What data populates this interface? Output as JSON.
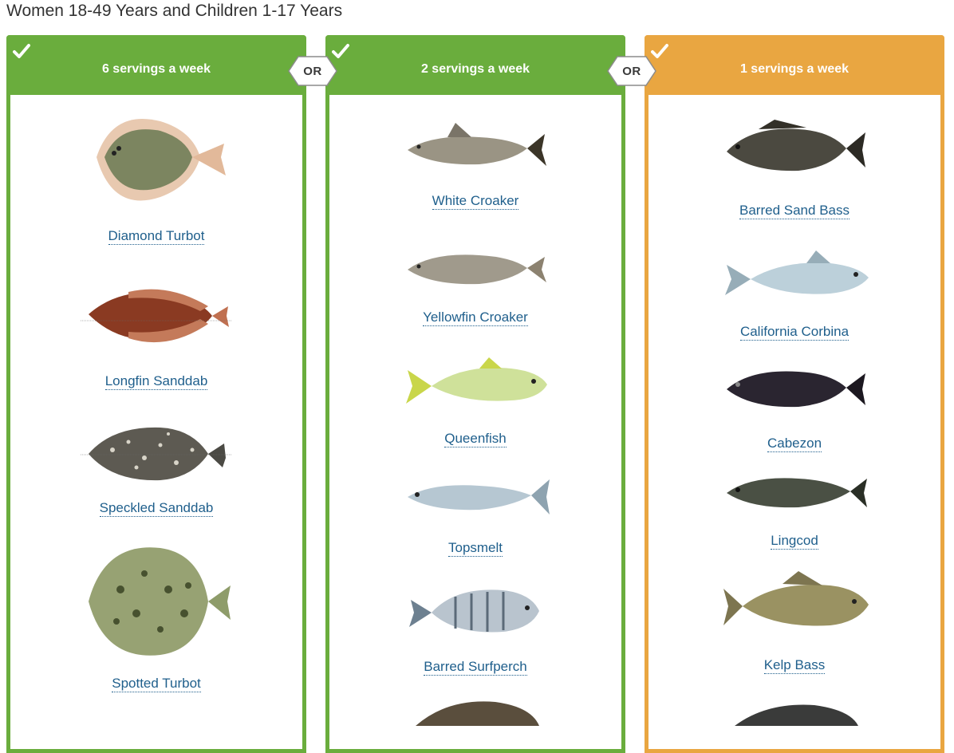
{
  "page": {
    "title": "Women 18-49 Years and Children 1-17 Years"
  },
  "colors": {
    "green": "#6aad3d",
    "orange": "#e9a641",
    "link": "#1f5f8c"
  },
  "separator_label": "OR",
  "columns": [
    {
      "header": "6 servings a week",
      "fish": [
        {
          "name": "Diamond Turbot"
        },
        {
          "name": "Longfin Sanddab"
        },
        {
          "name": "Speckled Sanddab"
        },
        {
          "name": "Spotted Turbot"
        }
      ]
    },
    {
      "header": "2 servings a week",
      "fish": [
        {
          "name": "White Croaker"
        },
        {
          "name": "Yellowfin Croaker"
        },
        {
          "name": "Queenfish"
        },
        {
          "name": "Topsmelt"
        },
        {
          "name": "Barred Surfperch"
        }
      ]
    },
    {
      "header": "1 servings a week",
      "fish": [
        {
          "name": "Barred Sand Bass"
        },
        {
          "name": "California Corbina"
        },
        {
          "name": "Cabezon"
        },
        {
          "name": "Lingcod"
        },
        {
          "name": "Kelp Bass"
        }
      ]
    }
  ]
}
